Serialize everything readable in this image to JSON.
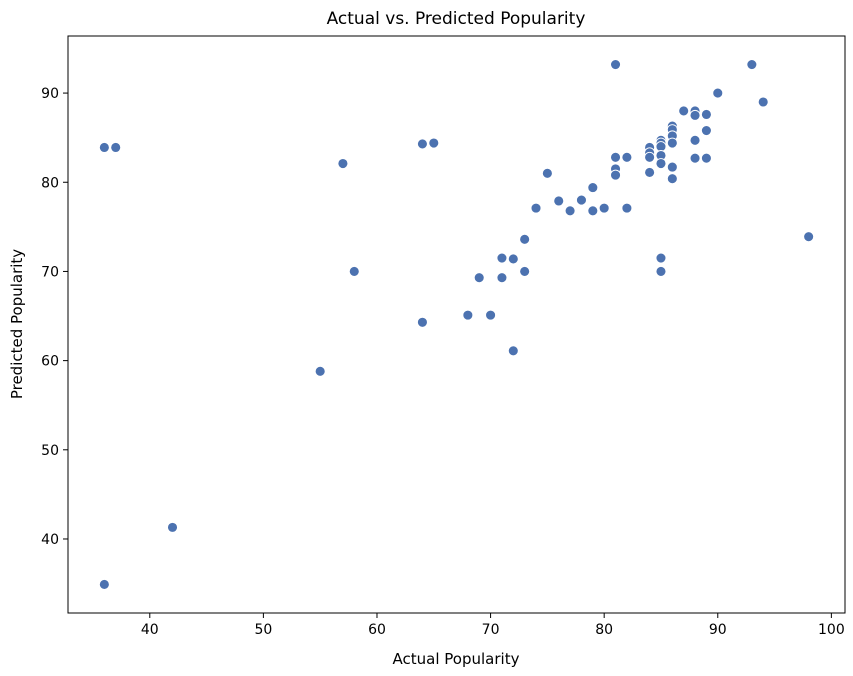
{
  "chart_data": {
    "type": "scatter",
    "title": "Actual vs. Predicted Popularity",
    "xlabel": "Actual Popularity",
    "ylabel": "Predicted Popularity",
    "xlim": [
      32.8,
      101.2
    ],
    "ylim": [
      31.7,
      96.4
    ],
    "xticks": [
      40,
      50,
      60,
      70,
      80,
      90,
      100
    ],
    "yticks": [
      40,
      50,
      60,
      70,
      80,
      90
    ],
    "grid": false,
    "marker_color": "#4c72b0",
    "points": [
      [
        36,
        83.9
      ],
      [
        37,
        83.9
      ],
      [
        36,
        34.9
      ],
      [
        42,
        41.3
      ],
      [
        55,
        58.8
      ],
      [
        57,
        82.1
      ],
      [
        58,
        70.0
      ],
      [
        64,
        84.3
      ],
      [
        65,
        84.4
      ],
      [
        64,
        64.3
      ],
      [
        68,
        65.1
      ],
      [
        69,
        69.3
      ],
      [
        70,
        65.1
      ],
      [
        71,
        71.5
      ],
      [
        71,
        69.3
      ],
      [
        72,
        71.4
      ],
      [
        72,
        61.1
      ],
      [
        73,
        73.6
      ],
      [
        73,
        70.0
      ],
      [
        74,
        77.1
      ],
      [
        75,
        81.0
      ],
      [
        76,
        77.9
      ],
      [
        77,
        76.8
      ],
      [
        78,
        78.0
      ],
      [
        79,
        79.4
      ],
      [
        79,
        76.8
      ],
      [
        80,
        77.1
      ],
      [
        81,
        93.2
      ],
      [
        81,
        82.8
      ],
      [
        81,
        81.5
      ],
      [
        81,
        80.8
      ],
      [
        82,
        82.8
      ],
      [
        82,
        77.1
      ],
      [
        84,
        83.9
      ],
      [
        84,
        83.3
      ],
      [
        84,
        82.8
      ],
      [
        84,
        81.1
      ],
      [
        85,
        84.7
      ],
      [
        85,
        84.4
      ],
      [
        85,
        84.0
      ],
      [
        85,
        83.0
      ],
      [
        85,
        82.1
      ],
      [
        85,
        71.5
      ],
      [
        85,
        70.0
      ],
      [
        86,
        86.3
      ],
      [
        86,
        85.9
      ],
      [
        86,
        85.2
      ],
      [
        86,
        84.4
      ],
      [
        86,
        81.7
      ],
      [
        86,
        80.4
      ],
      [
        87,
        88.0
      ],
      [
        88,
        88.0
      ],
      [
        88,
        87.5
      ],
      [
        88,
        84.7
      ],
      [
        88,
        82.7
      ],
      [
        89,
        87.6
      ],
      [
        89,
        85.8
      ],
      [
        89,
        82.7
      ],
      [
        90,
        90.0
      ],
      [
        93,
        93.2
      ],
      [
        94,
        89.0
      ],
      [
        98,
        73.9
      ]
    ]
  }
}
